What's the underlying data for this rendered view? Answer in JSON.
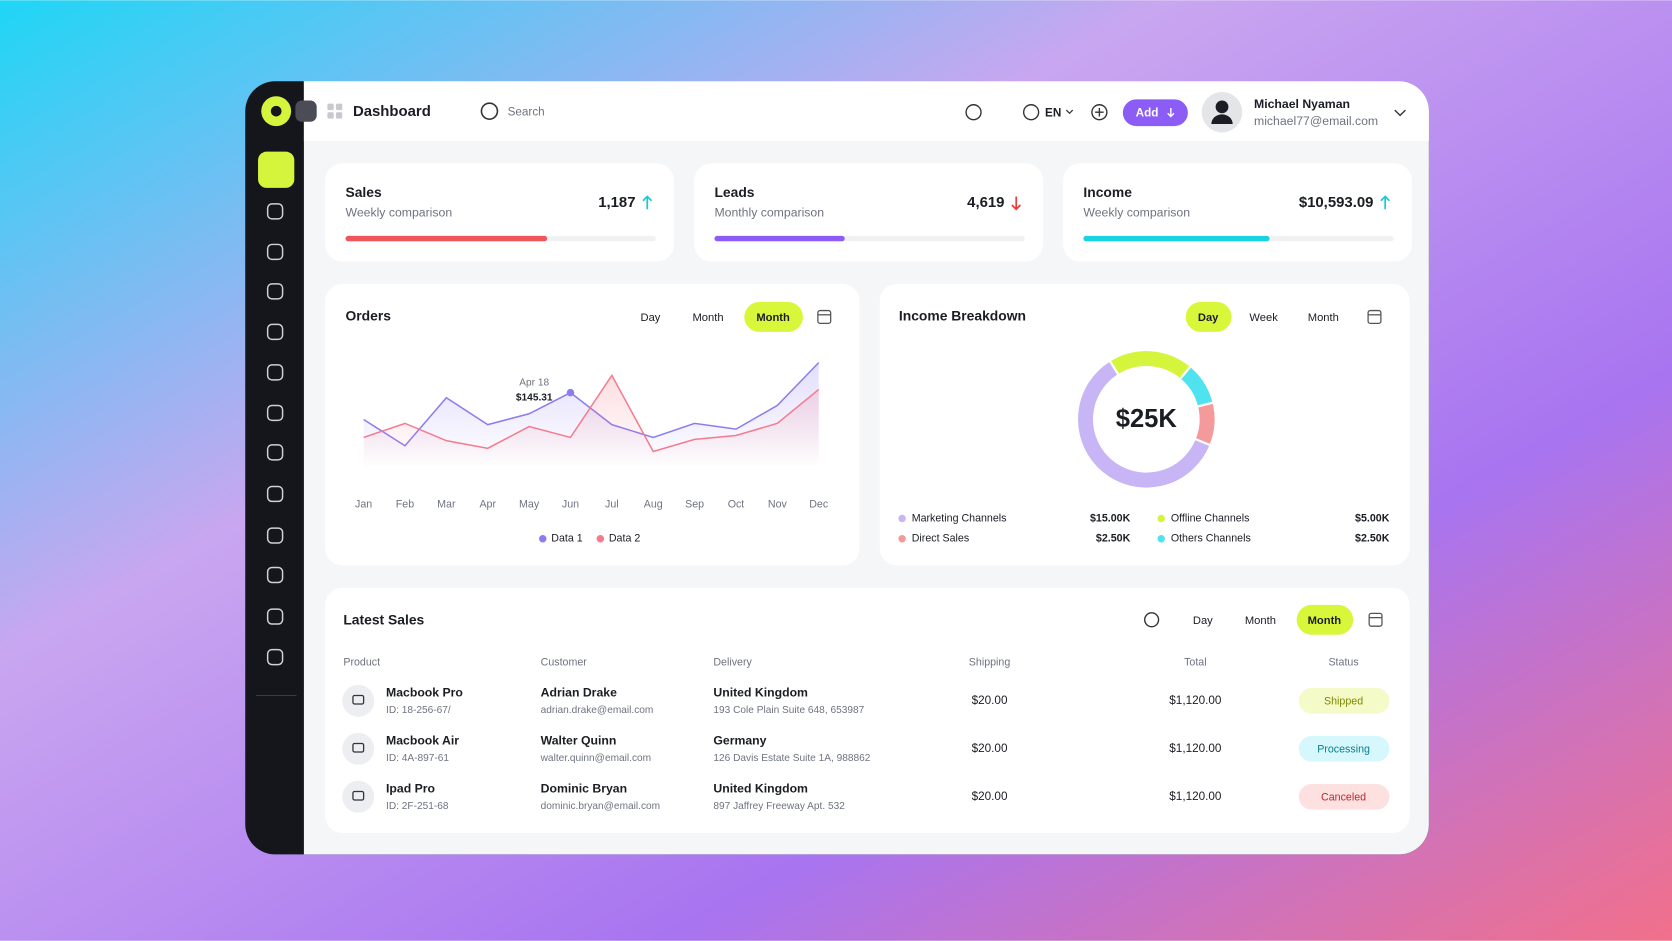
{
  "header": {
    "title": "Dashboard",
    "search": "Search",
    "language": "EN",
    "add": "Add",
    "user_name": "Michael Nyaman",
    "user_email": "michael77@email.com"
  },
  "kpis": [
    {
      "title": "Sales",
      "subtitle": "Weekly comparison",
      "value": 1187,
      "value_label": "1,187",
      "trend": "up",
      "progress": 65,
      "color": "#f2545b"
    },
    {
      "title": "Leads",
      "subtitle": "Monthly comparison",
      "value": 4619,
      "value_label": "4,619",
      "trend": "down",
      "progress": 42,
      "color": "#8b5cf6"
    },
    {
      "title": "Income",
      "subtitle": "Weekly comparison",
      "value": 10593.09,
      "value_label": "$10,593.09",
      "trend": "up",
      "progress": 60,
      "color": "#19d3e0"
    }
  ],
  "chart_data": [
    {
      "type": "line",
      "title": "Orders",
      "tabs": [
        "Day",
        "Month",
        "Month"
      ],
      "active_tab": 2,
      "categories": [
        "Jan",
        "Feb",
        "Mar",
        "Apr",
        "May",
        "Jun",
        "Jul",
        "Aug",
        "Sep",
        "Oct",
        "Nov",
        "Dec"
      ],
      "ylim": [
        0,
        200
      ],
      "series": [
        {
          "name": "Data 1",
          "color": "#8b7cf0",
          "values": [
            103,
            62,
            137,
            95,
            112,
            145,
            95,
            75,
            97,
            88,
            125,
            192
          ]
        },
        {
          "name": "Data 2",
          "color": "#f47a8c",
          "values": [
            75,
            97,
            70,
            58,
            92,
            75,
            172,
            53,
            72,
            78,
            97,
            150
          ]
        }
      ],
      "tooltip": {
        "series": 0,
        "index": 5,
        "date": "Apr 18",
        "value_label": "$145.31"
      }
    },
    {
      "type": "pie",
      "title": "Income Breakdown",
      "tabs": [
        "Day",
        "Week",
        "Month"
      ],
      "active_tab": 0,
      "center_label": "$25K",
      "series": [
        {
          "name": "Offline Channels",
          "color": "#d4f53c",
          "value": 5,
          "value_label": "$5.00K"
        },
        {
          "name": "Others Channels",
          "color": "#4fe3f0",
          "value": 2.5,
          "value_label": "$2.50K"
        },
        {
          "name": "Direct Sales",
          "color": "#f59a9a",
          "value": 2.5,
          "value_label": "$2.50K"
        },
        {
          "name": "Marketing Channels",
          "color": "#c8b5f6",
          "value": 15,
          "value_label": "$15.00K"
        }
      ]
    }
  ],
  "sales_table": {
    "title": "Latest Sales",
    "tabs": [
      "Day",
      "Month",
      "Month"
    ],
    "active_tab": 2,
    "columns": [
      "Product",
      "Customer",
      "Delivery",
      "Shipping",
      "Total",
      "Status"
    ],
    "rows": [
      {
        "product": "Macbook Pro",
        "id": "ID: 18-256-67/",
        "customer": "Adrian Drake",
        "email": "adrian.drake@email.com",
        "country": "United Kingdom",
        "address": "193 Cole Plain Suite 648, 653987",
        "shipping": "$20.00",
        "total": "$1,120.00",
        "status": "Shipped"
      },
      {
        "product": "Macbook Air",
        "id": "ID: 4A-897-61",
        "customer": "Walter Quinn",
        "email": "walter.quinn@email.com",
        "country": "Germany",
        "address": "126 Davis Estate Suite 1A, 988862",
        "shipping": "$20.00",
        "total": "$1,120.00",
        "status": "Processing"
      },
      {
        "product": "Ipad Pro",
        "id": "ID: 2F-251-68",
        "customer": "Dominic Bryan",
        "email": "dominic.bryan@email.com",
        "country": "United Kingdom",
        "address": "897 Jaffrey Freeway Apt. 532",
        "shipping": "$20.00",
        "total": "$1,120.00",
        "status": "Canceled"
      }
    ]
  }
}
